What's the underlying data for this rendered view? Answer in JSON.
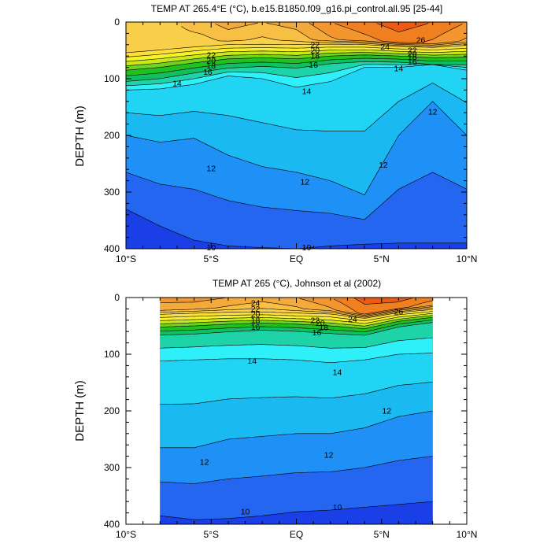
{
  "chart_data": [
    {
      "type": "contour",
      "title": "TEMP AT 265.4°E (°C), b.e15.B1850.f09_g16.pi_control.all.95 [25-44]",
      "ylabel": "DEPTH (m)",
      "xlabel": "",
      "x_ticks": [
        {
          "value": -10,
          "label": "10°S"
        },
        {
          "value": -5,
          "label": "5°S"
        },
        {
          "value": 0,
          "label": "EQ"
        },
        {
          "value": 5,
          "label": "5°N"
        },
        {
          "value": 10,
          "label": "10°N"
        }
      ],
      "y_ticks": [
        0,
        100,
        200,
        300,
        400
      ],
      "xlim": [
        -10,
        10
      ],
      "ylim": [
        0,
        400
      ],
      "y_reversed": true,
      "data_xlim": [
        -10,
        10
      ],
      "colorscale": [
        {
          "t": 9,
          "color": "#1a3fe6"
        },
        {
          "t": 10,
          "color": "#2466f0"
        },
        {
          "t": 11,
          "color": "#1f90f5"
        },
        {
          "t": 12,
          "color": "#1ab9f2"
        },
        {
          "t": 13,
          "color": "#22d4f4"
        },
        {
          "t": 14,
          "color": "#2ff0f8"
        },
        {
          "t": 15,
          "color": "#1fd3a8"
        },
        {
          "t": 16,
          "color": "#10c060"
        },
        {
          "t": 17,
          "color": "#20c020"
        },
        {
          "t": 18,
          "color": "#6ed21e"
        },
        {
          "t": 19,
          "color": "#c8e81a"
        },
        {
          "t": 20,
          "color": "#f6f22a"
        },
        {
          "t": 21,
          "color": "#fadf3a"
        },
        {
          "t": 22,
          "color": "#f9cf4a"
        },
        {
          "t": 23,
          "color": "#f7bf44"
        },
        {
          "t": 24,
          "color": "#f4aa3a"
        },
        {
          "t": 25,
          "color": "#f39630"
        },
        {
          "t": 26,
          "color": "#f07f20"
        },
        {
          "t": 27,
          "color": "#ee5a12"
        },
        {
          "t": 28,
          "color": "#e8280a"
        }
      ],
      "model": {
        "x": [
          -10,
          -8,
          -6,
          -4,
          -2,
          0,
          2,
          4,
          6,
          8,
          10
        ],
        "surface_temp": [
          21.5,
          22.5,
          23.5,
          24.5,
          24.0,
          24.5,
          26.0,
          26.8,
          27.6,
          27.0,
          26.0
        ],
        "thermocline": {
          "z18": [
            85,
            80,
            72,
            65,
            63,
            65,
            60,
            58,
            60,
            63,
            62
          ],
          "width": [
            22,
            22,
            20,
            18,
            17,
            18,
            15,
            13,
            12,
            13,
            15
          ]
        },
        "deep_isotherms": [
          {
            "t": 14,
            "z": [
              120,
              118,
              110,
              95,
              100,
              115,
              105,
              80,
              80,
              75,
              85
            ]
          },
          {
            "t": 12,
            "z": [
              200,
              212,
              205,
              235,
              255,
              265,
              280,
              305,
              200,
              140,
              200
            ]
          },
          {
            "t": 10,
            "z": [
              330,
              360,
              385,
              395,
              398,
              400,
              395,
              392,
              390,
              390,
              390
            ]
          }
        ]
      },
      "contour_labels": [
        {
          "text": "22",
          "x": -5.0,
          "y": 58
        },
        {
          "text": "20",
          "x": -5.0,
          "y": 68
        },
        {
          "text": "18",
          "x": -5.0,
          "y": 77
        },
        {
          "text": "16",
          "x": -5.2,
          "y": 88
        },
        {
          "text": "14",
          "x": -7.0,
          "y": 108
        },
        {
          "text": "22",
          "x": 1.1,
          "y": 40
        },
        {
          "text": "20",
          "x": 1.1,
          "y": 50
        },
        {
          "text": "18",
          "x": 1.1,
          "y": 60
        },
        {
          "text": "16",
          "x": 1.0,
          "y": 76
        },
        {
          "text": "14",
          "x": 0.6,
          "y": 122
        },
        {
          "text": "26",
          "x": 7.3,
          "y": 32
        },
        {
          "text": "24",
          "x": 5.2,
          "y": 44
        },
        {
          "text": "22",
          "x": 6.8,
          "y": 50
        },
        {
          "text": "20",
          "x": 6.8,
          "y": 56
        },
        {
          "text": "18",
          "x": 6.8,
          "y": 62
        },
        {
          "text": "16",
          "x": 6.8,
          "y": 70
        },
        {
          "text": "14",
          "x": 6.0,
          "y": 82
        },
        {
          "text": "12",
          "x": 8.0,
          "y": 158
        },
        {
          "text": "12",
          "x": -5.0,
          "y": 258
        },
        {
          "text": "12",
          "x": 0.5,
          "y": 282
        },
        {
          "text": "12",
          "x": 5.1,
          "y": 252
        },
        {
          "text": "10",
          "x": -5.0,
          "y": 398
        },
        {
          "text": "10",
          "x": 0.6,
          "y": 398
        }
      ]
    },
    {
      "type": "contour",
      "title": "TEMP AT 265 (°C), Johnson et al (2002)",
      "ylabel": "DEPTH (m)",
      "xlabel": "",
      "x_ticks": [
        {
          "value": -10,
          "label": "10°S"
        },
        {
          "value": -5,
          "label": "5°S"
        },
        {
          "value": 0,
          "label": "EQ"
        },
        {
          "value": 5,
          "label": "5°N"
        },
        {
          "value": 10,
          "label": "10°N"
        }
      ],
      "y_ticks": [
        0,
        100,
        200,
        300,
        400
      ],
      "xlim": [
        -10,
        10
      ],
      "ylim": [
        0,
        400
      ],
      "y_reversed": true,
      "data_xlim": [
        -8,
        8
      ],
      "colorscale": [
        {
          "t": 9,
          "color": "#1a3fe6"
        },
        {
          "t": 10,
          "color": "#2466f0"
        },
        {
          "t": 11,
          "color": "#1f90f5"
        },
        {
          "t": 12,
          "color": "#1ab9f2"
        },
        {
          "t": 13,
          "color": "#22d4f4"
        },
        {
          "t": 14,
          "color": "#2ff0f8"
        },
        {
          "t": 15,
          "color": "#1fd3a8"
        },
        {
          "t": 16,
          "color": "#10c060"
        },
        {
          "t": 17,
          "color": "#20c020"
        },
        {
          "t": 18,
          "color": "#6ed21e"
        },
        {
          "t": 19,
          "color": "#c8e81a"
        },
        {
          "t": 20,
          "color": "#f6f22a"
        },
        {
          "t": 21,
          "color": "#fadf3a"
        },
        {
          "t": 22,
          "color": "#f9cf4a"
        },
        {
          "t": 23,
          "color": "#f7bf44"
        },
        {
          "t": 24,
          "color": "#f4aa3a"
        },
        {
          "t": 25,
          "color": "#f39630"
        },
        {
          "t": 26,
          "color": "#f07f20"
        },
        {
          "t": 27,
          "color": "#ee5a12"
        },
        {
          "t": 28,
          "color": "#e8280a"
        }
      ],
      "model": {
        "x": [
          -8,
          -6,
          -4,
          -2,
          0,
          2,
          4,
          6,
          8
        ],
        "surface_temp": [
          25.5,
          25.5,
          25.0,
          24.5,
          25.0,
          26.0,
          27.5,
          27.5,
          26.5
        ],
        "thermocline": {
          "z18": [
            52,
            50,
            47,
            45,
            47,
            50,
            55,
            42,
            35
          ],
          "width": [
            16,
            16,
            15,
            14,
            14,
            15,
            13,
            11,
            10
          ]
        },
        "deep_isotherms": [
          {
            "t": 14,
            "z": [
              112,
              110,
              108,
              108,
              110,
              115,
              110,
              100,
              98
            ]
          },
          {
            "t": 12,
            "z": [
              265,
              265,
              250,
              245,
              240,
              240,
              230,
              210,
              200
            ]
          },
          {
            "t": 10,
            "z": [
              385,
              392,
              390,
              385,
              378,
              375,
              370,
              365,
              360
            ]
          }
        ]
      },
      "contour_labels": [
        {
          "text": "24",
          "x": -2.4,
          "y": 10
        },
        {
          "text": "22",
          "x": -2.4,
          "y": 20
        },
        {
          "text": "20",
          "x": -2.4,
          "y": 30
        },
        {
          "text": "18",
          "x": -2.4,
          "y": 40
        },
        {
          "text": "16",
          "x": -2.4,
          "y": 52
        },
        {
          "text": "22",
          "x": 1.1,
          "y": 40
        },
        {
          "text": "20",
          "x": 1.4,
          "y": 45
        },
        {
          "text": "18",
          "x": 1.6,
          "y": 53
        },
        {
          "text": "16",
          "x": 1.2,
          "y": 62
        },
        {
          "text": "24",
          "x": 3.3,
          "y": 38
        },
        {
          "text": "26",
          "x": 6.0,
          "y": 25
        },
        {
          "text": "14",
          "x": -2.6,
          "y": 112
        },
        {
          "text": "14",
          "x": 2.4,
          "y": 132
        },
        {
          "text": "12",
          "x": 5.3,
          "y": 200
        },
        {
          "text": "12",
          "x": -5.4,
          "y": 290
        },
        {
          "text": "12",
          "x": 1.9,
          "y": 278
        },
        {
          "text": "10",
          "x": -3.0,
          "y": 378
        },
        {
          "text": "10",
          "x": 2.4,
          "y": 370
        }
      ]
    }
  ]
}
